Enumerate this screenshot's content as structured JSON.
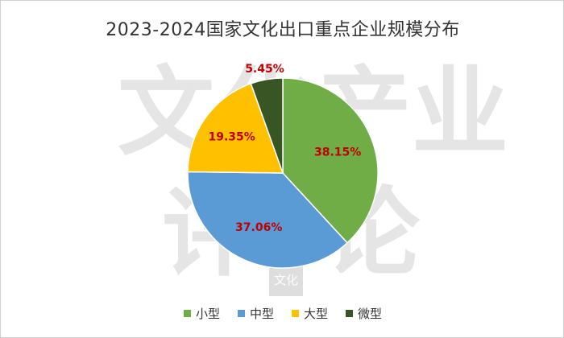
{
  "chart_data": {
    "type": "pie",
    "title": "2023-2024国家文化出口重点企业规模分布",
    "categories": [
      "小型",
      "中型",
      "大型",
      "微型"
    ],
    "values": [
      38.15,
      37.06,
      19.35,
      5.45
    ],
    "value_labels": [
      "38.15%",
      "37.06%",
      "19.35%",
      "5.45%"
    ],
    "colors": [
      "#70ad47",
      "#5b9bd5",
      "#ffc000",
      "#375623"
    ],
    "label_color": "#c00000",
    "legend_position": "bottom"
  },
  "watermark": {
    "glyphs": [
      "文",
      "化",
      "产",
      "业",
      "评",
      "论"
    ],
    "seal": "文化"
  }
}
